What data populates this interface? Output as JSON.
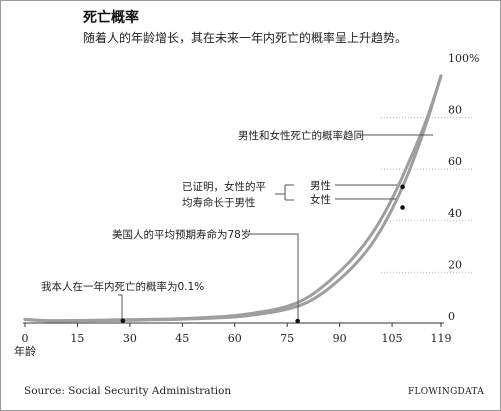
{
  "chart_data": {
    "type": "line",
    "title": "死亡概率",
    "subtitle": "随着人的年龄增长，其在未来一年内死亡的概率呈上升趋势。",
    "xlabel": "年龄",
    "x_ticks": [
      "0",
      "15",
      "30",
      "45",
      "60",
      "75",
      "90",
      "105",
      "119"
    ],
    "y_ticks": [
      "0",
      "20",
      "40",
      "60",
      "80",
      "100%"
    ],
    "xlim": [
      0,
      119
    ],
    "ylim": [
      0,
      100
    ],
    "grid": "dotted horizontal",
    "colors": {
      "line": "#9e9e9e",
      "text": "#222222",
      "axis": "#333333",
      "grid": "#bbbbbb"
    },
    "series": [
      {
        "name": "男性",
        "x": [
          0,
          5,
          10,
          15,
          20,
          25,
          30,
          35,
          40,
          45,
          50,
          55,
          60,
          65,
          70,
          75,
          80,
          85,
          90,
          95,
          100,
          105,
          110,
          115,
          119
        ],
        "values": [
          0.7,
          0.1,
          0.1,
          0.2,
          0.3,
          0.4,
          0.5,
          0.6,
          0.7,
          0.9,
          1.2,
          1.6,
          2.0,
          3.0,
          4.0,
          5.5,
          8.2,
          13.0,
          19.0,
          26.0,
          35.0,
          47.0,
          62.0,
          78.0,
          95.0
        ]
      },
      {
        "name": "女性",
        "x": [
          0,
          5,
          10,
          15,
          20,
          25,
          30,
          35,
          40,
          45,
          50,
          55,
          60,
          65,
          70,
          75,
          80,
          85,
          90,
          95,
          100,
          105,
          110,
          115,
          119
        ],
        "values": [
          0.6,
          0.1,
          0.1,
          0.1,
          0.2,
          0.2,
          0.3,
          0.4,
          0.5,
          0.7,
          0.9,
          1.2,
          1.5,
          2.3,
          3.2,
          4.5,
          6.5,
          10.5,
          16.0,
          22.5,
          31.0,
          43.0,
          58.0,
          77.0,
          95.0
        ]
      }
    ],
    "annotations": {
      "converge": "男性和女性死亡的概率趋同",
      "proven_line1": "已证明，女性的平",
      "proven_line2": "均寿命长于男性",
      "male_label": "男性",
      "female_label": "女性",
      "life_expectancy": "美国人的平均预期寿命为78岁",
      "my_probability": "我本人在一年内死亡的概率为0.1%"
    },
    "markers": [
      {
        "x": 28,
        "y": 0.1
      },
      {
        "x": 78,
        "y": 0
      },
      {
        "x": 108,
        "y": 52
      },
      {
        "x": 108,
        "y": 44
      }
    ]
  },
  "footer": {
    "source": "Source: Social Security Administration",
    "brand": "FLOWINGDATA"
  }
}
